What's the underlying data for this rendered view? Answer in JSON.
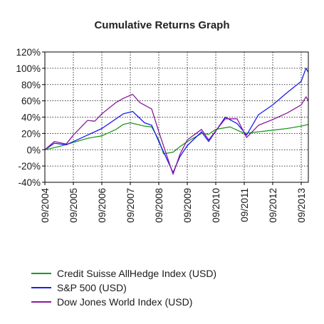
{
  "chart_data": {
    "type": "line",
    "title": "Cumulative Returns Graph",
    "xlabel": "",
    "ylabel": "",
    "ylim": [
      -40,
      120
    ],
    "y_ticks": [
      "120%",
      "100%",
      "80%",
      "60%",
      "40%",
      "20%",
      "0%",
      "-20%",
      "-40%"
    ],
    "x_range": [
      "2004-09",
      "2013-12"
    ],
    "x_ticks": [
      "09/2004",
      "09/2005",
      "09/2006",
      "09/2007",
      "09/2008",
      "09/2009",
      "09/2010",
      "09/2011",
      "09/2012",
      "09/2013"
    ],
    "grid": true,
    "legend_position": "bottom",
    "series": [
      {
        "name": "Credit Suisse AllHedge Index (USD)",
        "color": "#1f9a1f",
        "x": [
          "2004-09",
          "2005-03",
          "2005-09",
          "2006-03",
          "2006-09",
          "2007-03",
          "2007-06",
          "2007-09",
          "2007-12",
          "2008-03",
          "2008-06",
          "2008-09",
          "2008-11",
          "2009-03",
          "2009-06",
          "2009-09",
          "2010-03",
          "2010-06",
          "2010-09",
          "2011-03",
          "2011-09",
          "2012-03",
          "2012-09",
          "2013-03",
          "2013-09",
          "2013-12"
        ],
        "values": [
          0,
          4,
          9,
          14,
          17,
          25,
          31,
          33,
          31,
          29,
          28,
          12,
          -5,
          -3,
          4,
          10,
          20,
          19,
          25,
          28,
          20,
          22,
          24,
          26,
          29,
          31
        ]
      },
      {
        "name": "S&P 500 (USD)",
        "color": "#1c1cf0",
        "x": [
          "2004-09",
          "2005-01",
          "2005-06",
          "2005-09",
          "2006-03",
          "2006-09",
          "2007-03",
          "2007-06",
          "2007-10",
          "2008-03",
          "2008-06",
          "2008-09",
          "2009-03",
          "2009-06",
          "2009-09",
          "2010-03",
          "2010-06",
          "2011-01",
          "2011-06",
          "2011-10",
          "2012-03",
          "2012-09",
          "2013-03",
          "2013-09",
          "2013-11",
          "2013-12"
        ],
        "values": [
          0,
          8,
          6,
          10,
          18,
          26,
          38,
          44,
          47,
          33,
          30,
          10,
          -28,
          -8,
          5,
          22,
          10,
          40,
          32,
          18,
          43,
          55,
          70,
          84,
          100,
          95
        ]
      },
      {
        "name": "Dow Jones World Index (USD)",
        "color": "#8a1a9a",
        "x": [
          "2004-09",
          "2005-01",
          "2005-06",
          "2005-09",
          "2006-03",
          "2006-06",
          "2006-09",
          "2007-03",
          "2007-06",
          "2007-10",
          "2008-01",
          "2008-06",
          "2008-09",
          "2009-03",
          "2009-06",
          "2009-09",
          "2010-03",
          "2010-06",
          "2011-01",
          "2011-06",
          "2011-10",
          "2012-03",
          "2012-09",
          "2013-03",
          "2013-09",
          "2013-11",
          "2013-12"
        ],
        "values": [
          0,
          10,
          7,
          18,
          36,
          35,
          44,
          58,
          63,
          68,
          58,
          50,
          22,
          -30,
          -5,
          12,
          25,
          12,
          38,
          38,
          15,
          30,
          37,
          45,
          55,
          65,
          60
        ]
      }
    ]
  }
}
